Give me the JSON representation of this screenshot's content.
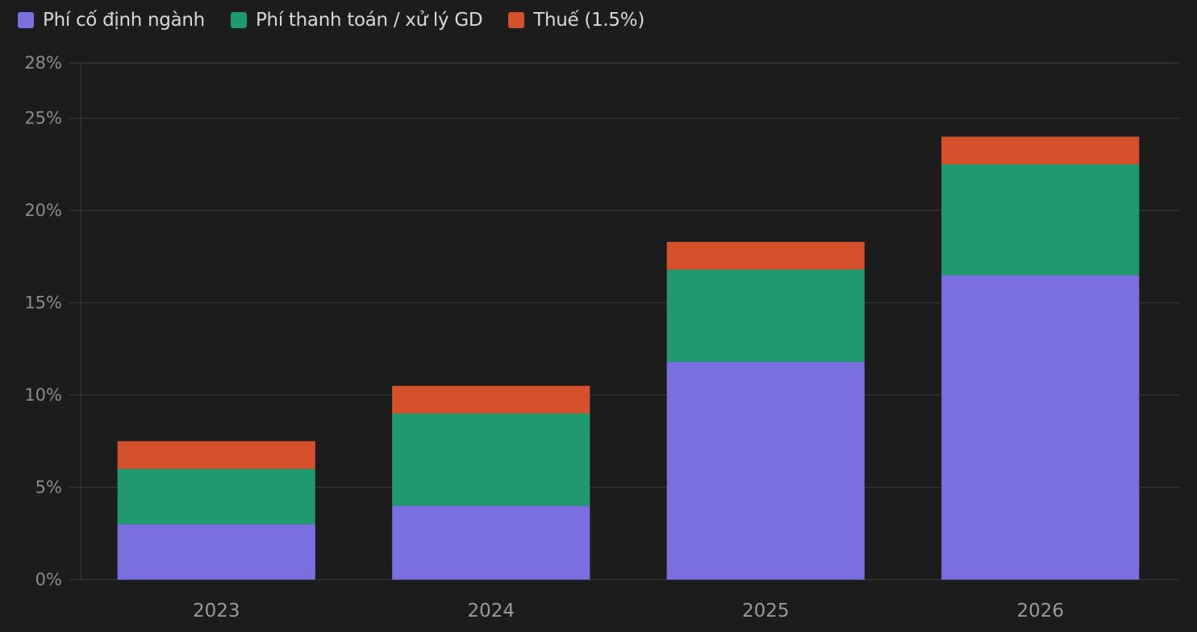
{
  "chart_data": {
    "type": "bar",
    "stacked": true,
    "categories": [
      "2023",
      "2024",
      "2025",
      "2026"
    ],
    "series": [
      {
        "name": "Phí cố định ngành",
        "color": "#7a6fe0",
        "values": [
          3,
          4,
          11.8,
          16.5
        ]
      },
      {
        "name": "Phí thanh toán / xử lý GD",
        "color": "#1f9a6e",
        "values": [
          3,
          5,
          5,
          6
        ]
      },
      {
        "name": "Thuế (1.5%)",
        "color": "#d4512c",
        "values": [
          1.5,
          1.5,
          1.5,
          1.5
        ]
      }
    ],
    "ylim": [
      0,
      28
    ],
    "yticks": [
      0,
      5,
      10,
      15,
      20,
      25,
      28
    ],
    "ytick_labels": [
      "0%",
      "5%",
      "10%",
      "15%",
      "20%",
      "25%",
      "28%"
    ],
    "grid": true,
    "legend_position": "top-left",
    "title": "",
    "xlabel": "",
    "ylabel": ""
  },
  "style": {
    "background": "#1c1c1c",
    "grid_color": "#333333"
  }
}
